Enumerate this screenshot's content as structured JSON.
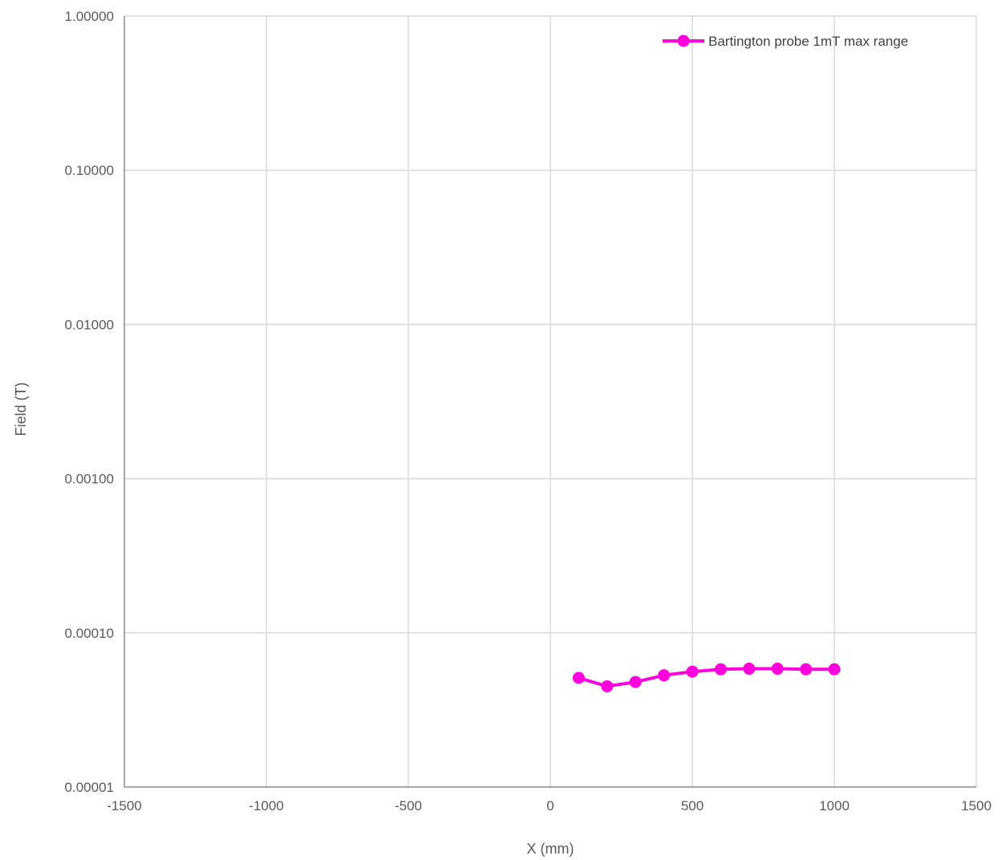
{
  "chart_data": {
    "type": "scatter",
    "title": "",
    "xlabel": "X (mm)",
    "ylabel": "Field (T)",
    "xlim": [
      -1500,
      1500
    ],
    "ylim": [
      1e-05,
      1
    ],
    "y_scale": "log",
    "grid": true,
    "legend_position": "top-right",
    "x_ticks": [
      {
        "value": -1500,
        "label": "-1500"
      },
      {
        "value": -1000,
        "label": "-1000"
      },
      {
        "value": -500,
        "label": "-500"
      },
      {
        "value": 0,
        "label": "0"
      },
      {
        "value": 500,
        "label": "500"
      },
      {
        "value": 1000,
        "label": "1000"
      },
      {
        "value": 1500,
        "label": "1500"
      }
    ],
    "y_ticks": [
      {
        "value": 1e-05,
        "label": "0.00001"
      },
      {
        "value": 0.0001,
        "label": "0.00010"
      },
      {
        "value": 0.001,
        "label": "0.00100"
      },
      {
        "value": 0.01,
        "label": "0.01000"
      },
      {
        "value": 0.1,
        "label": "0.10000"
      },
      {
        "value": 1,
        "label": "1.00000"
      }
    ],
    "series": [
      {
        "name": "Bartington probe 1mT max range",
        "color": "#ff00dd",
        "marker": "circle",
        "points": [
          {
            "x": 100,
            "y": 5.1e-05
          },
          {
            "x": 200,
            "y": 4.5e-05
          },
          {
            "x": 300,
            "y": 4.8e-05
          },
          {
            "x": 400,
            "y": 5.3e-05
          },
          {
            "x": 500,
            "y": 5.6e-05
          },
          {
            "x": 600,
            "y": 5.8e-05
          },
          {
            "x": 700,
            "y": 5.85e-05
          },
          {
            "x": 800,
            "y": 5.85e-05
          },
          {
            "x": 900,
            "y": 5.8e-05
          },
          {
            "x": 1000,
            "y": 5.8e-05
          }
        ]
      }
    ]
  }
}
